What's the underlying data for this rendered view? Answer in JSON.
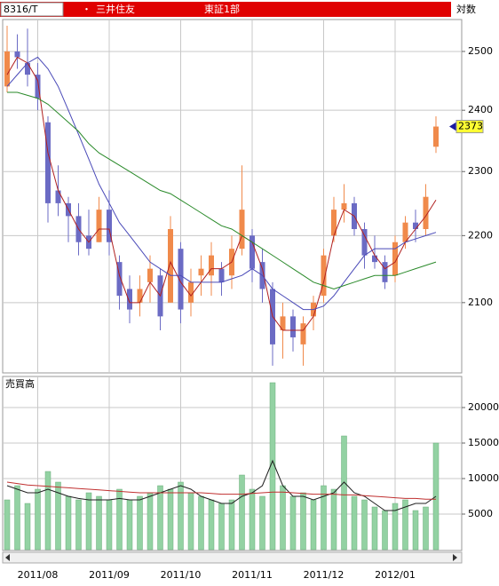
{
  "header": {
    "code": "8316/T",
    "marker": "・",
    "name": "三井住友",
    "market": "東証1部",
    "scale": "対数"
  },
  "chart_data": [
    {
      "type": "candlestick",
      "log": true,
      "grid": true,
      "up_color": "#f08a4b",
      "down_color": "#6b6bc4",
      "open": [
        2440,
        2500,
        2480,
        2460,
        2380,
        2270,
        2250,
        2230,
        2200,
        2190,
        2240,
        2160,
        2120,
        2100,
        2130,
        2140,
        2100,
        2180,
        2100,
        2140,
        2140,
        2150,
        2140,
        2180,
        2200,
        2160,
        2120,
        2060,
        2080,
        2040,
        2080,
        2110,
        2200,
        2240,
        2250,
        2210,
        2170,
        2160,
        2140,
        2190,
        2220,
        2210,
        2340
      ],
      "high": [
        2545,
        2530,
        2540,
        2480,
        2390,
        2310,
        2260,
        2250,
        2240,
        2260,
        2270,
        2170,
        2140,
        2140,
        2170,
        2150,
        2230,
        2190,
        2150,
        2170,
        2190,
        2160,
        2200,
        2310,
        2210,
        2180,
        2130,
        2100,
        2090,
        2080,
        2110,
        2180,
        2260,
        2280,
        2260,
        2220,
        2200,
        2170,
        2200,
        2230,
        2240,
        2280,
        2390
      ],
      "low": [
        2430,
        2470,
        2440,
        2400,
        2220,
        2230,
        2190,
        2170,
        2170,
        2190,
        2170,
        2090,
        2070,
        2080,
        2100,
        2060,
        2100,
        2070,
        2080,
        2110,
        2110,
        2110,
        2120,
        2170,
        2130,
        2100,
        2010,
        2020,
        2030,
        2010,
        2060,
        2100,
        2190,
        2220,
        2200,
        2150,
        2150,
        2120,
        2130,
        2180,
        2190,
        2200,
        2330
      ],
      "close": [
        2500,
        2490,
        2460,
        2420,
        2250,
        2250,
        2230,
        2190,
        2180,
        2240,
        2190,
        2110,
        2090,
        2120,
        2150,
        2080,
        2210,
        2090,
        2130,
        2150,
        2170,
        2130,
        2180,
        2240,
        2150,
        2120,
        2040,
        2080,
        2050,
        2070,
        2100,
        2170,
        2240,
        2250,
        2210,
        2170,
        2160,
        2130,
        2190,
        2220,
        2210,
        2260,
        2373
      ],
      "series": [
        {
          "color": "#b02020",
          "values": [
            2460,
            2490,
            2480,
            2450,
            2330,
            2270,
            2240,
            2210,
            2190,
            2210,
            2210,
            2140,
            2100,
            2100,
            2130,
            2110,
            2160,
            2130,
            2110,
            2130,
            2150,
            2150,
            2160,
            2200,
            2190,
            2150,
            2080,
            2060,
            2060,
            2060,
            2080,
            2130,
            2200,
            2240,
            2230,
            2200,
            2170,
            2150,
            2160,
            2190,
            2210,
            2230,
            2255
          ]
        },
        {
          "color": "#4a4ab8",
          "values": [
            2440,
            2460,
            2480,
            2490,
            2470,
            2440,
            2400,
            2360,
            2320,
            2280,
            2250,
            2220,
            2200,
            2180,
            2160,
            2150,
            2140,
            2140,
            2130,
            2130,
            2130,
            2130,
            2135,
            2140,
            2150,
            2140,
            2120,
            2110,
            2100,
            2090,
            2090,
            2095,
            2110,
            2130,
            2150,
            2170,
            2180,
            2180,
            2180,
            2190,
            2195,
            2200,
            2205
          ]
        },
        {
          "color": "#2a8a2a",
          "values": [
            2430,
            2430,
            2425,
            2420,
            2410,
            2395,
            2380,
            2365,
            2345,
            2330,
            2320,
            2310,
            2300,
            2290,
            2280,
            2270,
            2265,
            2255,
            2245,
            2235,
            2225,
            2215,
            2210,
            2200,
            2190,
            2180,
            2170,
            2160,
            2150,
            2140,
            2130,
            2125,
            2120,
            2125,
            2130,
            2135,
            2140,
            2140,
            2140,
            2145,
            2150,
            2155,
            2160
          ]
        }
      ],
      "ylim": [
        2000,
        2556
      ],
      "yticks": [
        2100,
        2200,
        2300,
        2400,
        2500
      ]
    },
    {
      "type": "bar",
      "title": "売買高",
      "color": "#93d2a3",
      "grid": true,
      "categories": [
        null,
        null,
        null,
        "2011/08",
        null,
        null,
        null,
        null,
        null,
        null,
        "2011/09",
        null,
        null,
        null,
        null,
        null,
        null,
        "2011/10",
        null,
        null,
        null,
        null,
        null,
        null,
        "2011/11",
        null,
        null,
        null,
        null,
        null,
        null,
        "2011/12",
        null,
        null,
        null,
        null,
        null,
        null,
        "2012/01",
        null,
        null,
        null,
        null
      ],
      "values": [
        7000,
        9000,
        6500,
        8500,
        11000,
        9500,
        7500,
        7000,
        8000,
        7500,
        7000,
        8500,
        7000,
        7500,
        8000,
        9000,
        8500,
        9500,
        8000,
        7500,
        7000,
        6500,
        7000,
        10500,
        8500,
        7500,
        23500,
        9000,
        7500,
        8000,
        7000,
        9000,
        8500,
        16000,
        7500,
        7000,
        6000,
        5500,
        6500,
        7000,
        5500,
        6000,
        15000
      ],
      "series": [
        {
          "color": "#202020",
          "values": [
            9000,
            8500,
            8000,
            8000,
            8500,
            8000,
            7500,
            7200,
            7000,
            7000,
            7000,
            7200,
            7000,
            7000,
            7500,
            8000,
            8500,
            9000,
            8500,
            7500,
            7000,
            6500,
            6500,
            7500,
            8000,
            9000,
            12500,
            9000,
            7500,
            7500,
            7000,
            7500,
            8000,
            9500,
            8000,
            7500,
            6500,
            5500,
            5500,
            6000,
            6500,
            6500,
            7500
          ]
        },
        {
          "color": "#c03030",
          "values": [
            9500,
            9300,
            9100,
            9000,
            8900,
            8800,
            8700,
            8600,
            8500,
            8400,
            8300,
            8200,
            8100,
            8000,
            8000,
            8000,
            8000,
            8000,
            8000,
            8000,
            7900,
            7800,
            7800,
            7800,
            7900,
            8000,
            8100,
            8100,
            8000,
            7900,
            7800,
            7800,
            7800,
            7700,
            7700,
            7600,
            7500,
            7400,
            7300,
            7200,
            7200,
            7100,
            7100
          ]
        }
      ],
      "ylim": [
        0,
        24000
      ],
      "yticks": [
        5000,
        10000,
        15000,
        20000
      ]
    }
  ]
}
